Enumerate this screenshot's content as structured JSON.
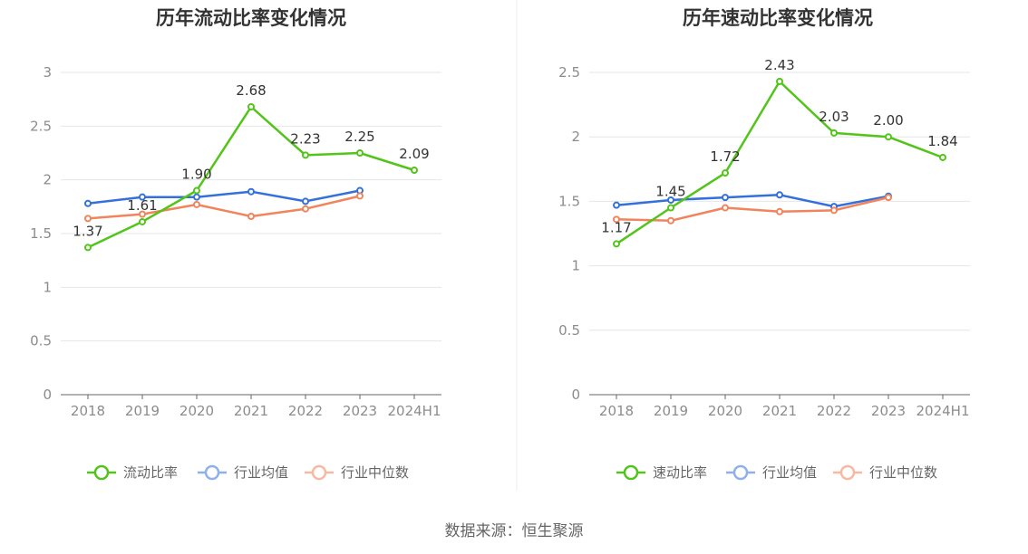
{
  "source": "数据来源：恒生聚源",
  "chart_data": [
    {
      "type": "line",
      "title": "历年流动比率变化情况",
      "categories": [
        "2018",
        "2019",
        "2020",
        "2021",
        "2022",
        "2023",
        "2024H1"
      ],
      "ylim": [
        0,
        3
      ],
      "yticks": [
        "0",
        "0.5",
        "1",
        "1.5",
        "2",
        "2.5",
        "3"
      ],
      "grid": true,
      "legend_position": "bottom",
      "series": [
        {
          "name": "流动比率",
          "color": "#52c41a",
          "values": [
            1.37,
            1.61,
            1.9,
            2.68,
            2.23,
            2.25,
            2.09
          ],
          "labels": [
            "1.37",
            "1.61",
            "1.90",
            "2.68",
            "2.23",
            "2.25",
            "2.09"
          ]
        },
        {
          "name": "行业均值",
          "color": "#3470db",
          "values": [
            1.78,
            1.84,
            1.84,
            1.89,
            1.8,
            1.9,
            null
          ]
        },
        {
          "name": "行业中位数",
          "color": "#f0845c",
          "values": [
            1.64,
            1.68,
            1.77,
            1.66,
            1.73,
            1.85,
            null
          ]
        }
      ]
    },
    {
      "type": "line",
      "title": "历年速动比率变化情况",
      "categories": [
        "2018",
        "2019",
        "2020",
        "2021",
        "2022",
        "2023",
        "2024H1"
      ],
      "ylim": [
        0,
        2.5
      ],
      "yticks": [
        "0",
        "0.5",
        "1",
        "1.5",
        "2",
        "2.5"
      ],
      "grid": true,
      "legend_position": "bottom",
      "series": [
        {
          "name": "速动比率",
          "color": "#52c41a",
          "values": [
            1.17,
            1.45,
            1.72,
            2.43,
            2.03,
            2.0,
            1.84
          ],
          "labels": [
            "1.17",
            "1.45",
            "1.72",
            "2.43",
            "2.03",
            "2.00",
            "1.84"
          ]
        },
        {
          "name": "行业均值",
          "color": "#3470db",
          "values": [
            1.47,
            1.51,
            1.53,
            1.55,
            1.46,
            1.54,
            null
          ]
        },
        {
          "name": "行业中位数",
          "color": "#f0845c",
          "values": [
            1.36,
            1.35,
            1.45,
            1.42,
            1.43,
            1.53,
            null
          ]
        }
      ]
    }
  ]
}
